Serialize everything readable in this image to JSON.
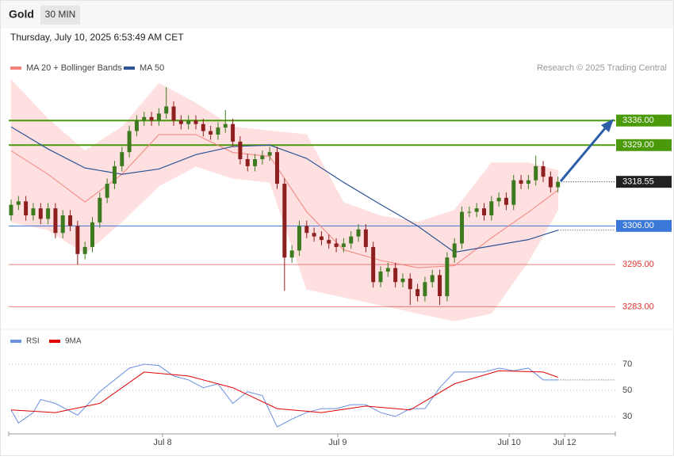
{
  "header": {
    "title": "Gold",
    "interval": "30 MIN",
    "timestamp": "Thursday, July 10, 2025 6:53:49 AM CET"
  },
  "chart_data": [
    {
      "type": "candlestick",
      "credit": "Research © 2025 Trading Central",
      "up_color": "#3d7a1f",
      "down_color": "#8e1f1f",
      "xlim": [
        -0.32,
        81.76
      ],
      "ylim": [
        3277.9,
        3348.9
      ],
      "open": [
        3309,
        3312,
        3313,
        3309,
        3311,
        3308,
        3311,
        3304,
        3309,
        3306,
        3298,
        3300,
        3307,
        3314,
        3318,
        3323,
        3327,
        3333,
        3336,
        3337,
        3336,
        3338,
        3340,
        3336,
        3335,
        3336,
        3335,
        3333,
        3332,
        3334,
        3335,
        3330,
        3325,
        3323,
        3325,
        3326,
        3327,
        3318,
        3297,
        3299,
        3306,
        3304,
        3303,
        3302,
        3301,
        3300,
        3301,
        3303,
        3305,
        3300,
        3290,
        3293,
        3294,
        3290,
        3291,
        3288,
        3286,
        3290,
        3292,
        3286,
        3297,
        3301,
        3310,
        3310,
        3311,
        3309,
        3313,
        3314,
        3312,
        3319,
        3318,
        3319,
        3323,
        3320,
        3317
      ],
      "high": [
        3313.5,
        3314.5,
        3314.5,
        3312.5,
        3312.5,
        3312.5,
        3312.5,
        3310.5,
        3310.5,
        3307.5,
        3301.5,
        3308.5,
        3315.5,
        3319.5,
        3324.5,
        3328.5,
        3334.5,
        3337.5,
        3338.5,
        3338.5,
        3339.5,
        3345.5,
        3341.5,
        3337.5,
        3337.5,
        3337.5,
        3336.5,
        3334.5,
        3335.5,
        3339,
        3336.5,
        3331.5,
        3326.5,
        3326.5,
        3327.5,
        3328.5,
        3328.5,
        3319.5,
        3300.5,
        3307.5,
        3307.5,
        3305.5,
        3304.5,
        3303.5,
        3302.5,
        3302.5,
        3304.5,
        3306.5,
        3306.5,
        3301.5,
        3294.5,
        3295.5,
        3295.5,
        3292.5,
        3292.5,
        3289.5,
        3291.5,
        3293.5,
        3293.5,
        3298.5,
        3302.5,
        3311.5,
        3311.5,
        3312.5,
        3312.5,
        3314.5,
        3315.5,
        3315.5,
        3320.5,
        3320.5,
        3320.5,
        3326,
        3324.5,
        3321.5,
        3320
      ],
      "low": [
        3307.5,
        3310.5,
        3307.5,
        3307.5,
        3306.5,
        3306.5,
        3302.5,
        3302.5,
        3304.5,
        3295,
        3296.5,
        3298.5,
        3305.5,
        3312.5,
        3316.5,
        3321.5,
        3325.5,
        3331.5,
        3334.5,
        3334.5,
        3334.5,
        3336.5,
        3334.5,
        3333.5,
        3333.5,
        3333.5,
        3331.5,
        3330.5,
        3330.5,
        3332.5,
        3328.5,
        3323.5,
        3321.5,
        3321.5,
        3323.5,
        3324.5,
        3316.5,
        3287.5,
        3295.5,
        3297.5,
        3302.5,
        3301.5,
        3300.5,
        3299.5,
        3298.5,
        3298.5,
        3299.5,
        3301.5,
        3298.5,
        3288.5,
        3288.5,
        3291.5,
        3288.5,
        3288.5,
        3283.5,
        3284.5,
        3284.5,
        3288.5,
        3283.5,
        3284.5,
        3295.5,
        3299.5,
        3308.5,
        3308.5,
        3307.5,
        3307.5,
        3311.5,
        3310.5,
        3310.5,
        3316.5,
        3316.5,
        3317.5,
        3318.5,
        3315.5,
        3315.5
      ],
      "close": [
        3312,
        3313,
        3309,
        3311,
        3308,
        3311,
        3304,
        3309,
        3306,
        3298,
        3300,
        3307,
        3314,
        3318,
        3323,
        3327,
        3333,
        3336,
        3337,
        3336,
        3338,
        3340,
        3336,
        3335,
        3336,
        3335,
        3333,
        3332,
        3334,
        3335,
        3330,
        3325,
        3323,
        3325,
        3326,
        3327,
        3318,
        3297,
        3299,
        3306,
        3304,
        3303,
        3302,
        3301,
        3300,
        3301,
        3303,
        3305,
        3300,
        3290,
        3293,
        3294,
        3290,
        3291,
        3288,
        3286,
        3290,
        3292,
        3286,
        3297,
        3301,
        3310,
        3310,
        3311,
        3309,
        3313,
        3314,
        3312,
        3319,
        3318,
        3319,
        3323,
        3320,
        3317,
        3318.55
      ],
      "overlays": [
        {
          "name": "MA 20 + Bollinger Bands",
          "color": "#f4837d",
          "band_color": "#fde0df",
          "x": [
            0,
            5,
            10,
            15,
            20,
            25,
            30,
            35,
            40,
            45,
            50,
            55,
            60,
            65,
            70,
            74
          ],
          "values": [
            3327.4,
            3320.7,
            3312.8,
            3320.7,
            3332,
            3332,
            3326.9,
            3325.8,
            3310,
            3299.2,
            3296.2,
            3294.1,
            3294.7,
            3302.6,
            3309.9,
            3316.2
          ],
          "upper": [
            3347.7,
            3336.5,
            3327.4,
            3334.2,
            3346.6,
            3341,
            3334.2,
            3333.1,
            3332,
            3312.7,
            3308.9,
            3307.1,
            3310.5,
            3324,
            3324,
            3321.8
          ],
          "lower": [
            3307.1,
            3304.8,
            3298.1,
            3307.1,
            3317.3,
            3322.9,
            3319.5,
            3318.4,
            3287.9,
            3285.7,
            3283.4,
            3281.1,
            3278.9,
            3281.1,
            3295.8,
            3310.5
          ]
        },
        {
          "name": "MA 50",
          "color": "#2f5597",
          "x": [
            0,
            5,
            10,
            15,
            20,
            25,
            30,
            35,
            40,
            45,
            50,
            55,
            60,
            65,
            70,
            74
          ],
          "values": [
            3334.2,
            3327.9,
            3322.5,
            3320.7,
            3322.2,
            3326.3,
            3328.6,
            3329,
            3325.2,
            3318.4,
            3312.1,
            3306,
            3298.5,
            3300.3,
            3302.1,
            3304.8
          ]
        }
      ],
      "levels": [
        {
          "value": 3336,
          "label": "3336.00",
          "color": "#4a9a0a",
          "box": true,
          "line": "thick"
        },
        {
          "value": 3329,
          "label": "3329.00",
          "color": "#4a9a0a",
          "box": true,
          "line": "thick"
        },
        {
          "value": 3318.55,
          "label": "3318.55",
          "color": "#222222",
          "box": true,
          "line": "dotted"
        },
        {
          "value": 3306,
          "label": "3306.00",
          "color": "#3c78d8",
          "box": true,
          "line": "thin"
        },
        {
          "value": 3295,
          "label": "3295.00",
          "color": "#e0302a",
          "box": false,
          "line": "thin"
        },
        {
          "value": 3283,
          "label": "3283.00",
          "color": "#e0302a",
          "box": false,
          "line": "thin"
        }
      ]
    },
    {
      "type": "line",
      "xlim": [
        -0.32,
        81.76
      ],
      "ylim": [
        18.5,
        79.1
      ],
      "yticks": [
        30,
        50,
        70
      ],
      "xticks": [
        {
          "value": 20.5,
          "label": "Jul 8"
        },
        {
          "value": 44.2,
          "label": "Jul 9"
        },
        {
          "value": 67.4,
          "label": "Jul 10"
        },
        {
          "value": 74.9,
          "label": "Jul 12"
        }
      ],
      "series": [
        {
          "name": "RSI",
          "color": "#6a8fe0",
          "x": [
            0,
            1,
            3,
            4,
            6,
            9,
            11,
            12,
            14,
            16,
            18,
            20,
            22,
            24,
            26,
            28,
            30,
            32,
            34,
            36,
            38,
            40,
            42,
            44,
            46,
            48,
            50,
            52,
            54,
            56,
            58,
            60,
            62,
            64,
            66,
            68,
            70,
            72,
            74
          ],
          "values": [
            35,
            25,
            33,
            43,
            40,
            31,
            43,
            49,
            58,
            67,
            70,
            69,
            61,
            58,
            52,
            55,
            40,
            49,
            46,
            22,
            28,
            33,
            36,
            36,
            39,
            39,
            33,
            30,
            36,
            36,
            52,
            64,
            64,
            64,
            67,
            65,
            67,
            58,
            58
          ]
        },
        {
          "name": "9MA",
          "color": "#e00000",
          "x": [
            0,
            6,
            12,
            18,
            24,
            30,
            36,
            42,
            48,
            54,
            60,
            66,
            72,
            74
          ],
          "values": [
            35,
            33,
            40,
            64,
            61,
            52,
            36,
            33,
            38,
            35,
            55,
            65,
            64,
            60
          ]
        }
      ]
    }
  ]
}
